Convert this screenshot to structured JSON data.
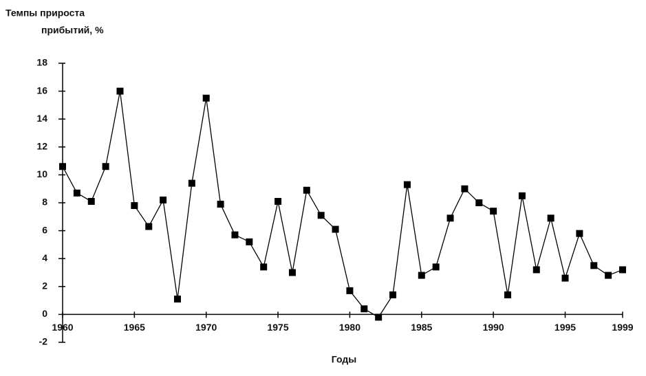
{
  "chart_data": {
    "type": "line",
    "ylabel": [
      "Темпы прироста",
      "прибытий, %"
    ],
    "xlabel": "Годы",
    "x": [
      1960,
      1961,
      1962,
      1963,
      1964,
      1965,
      1966,
      1967,
      1968,
      1969,
      1970,
      1971,
      1972,
      1973,
      1974,
      1975,
      1976,
      1977,
      1978,
      1979,
      1980,
      1981,
      1982,
      1983,
      1984,
      1985,
      1986,
      1987,
      1988,
      1989,
      1990,
      1991,
      1992,
      1993,
      1994,
      1995,
      1996,
      1997,
      1998,
      1999
    ],
    "series": [
      {
        "color": "#000000",
        "values": [
          10.6,
          8.7,
          8.1,
          10.6,
          16.0,
          7.8,
          6.3,
          8.2,
          1.1,
          9.4,
          15.5,
          7.9,
          5.7,
          5.2,
          3.4,
          8.1,
          3.0,
          8.9,
          7.1,
          6.1,
          1.7,
          0.4,
          -0.2,
          1.4,
          9.3,
          2.8,
          3.4,
          6.9,
          9.0,
          8.0,
          7.4,
          1.4,
          8.5,
          3.2,
          6.9,
          2.6,
          5.8,
          3.5,
          2.8,
          3.2
        ]
      }
    ],
    "xlim": [
      1960,
      1999
    ],
    "xticks": [
      1960,
      1965,
      1970,
      1975,
      1980,
      1985,
      1990,
      1995,
      1999
    ],
    "ylim": [
      -2,
      18
    ],
    "yticks": [
      -2,
      0,
      2,
      4,
      6,
      8,
      10,
      12,
      14,
      16,
      18
    ],
    "grid": false
  }
}
